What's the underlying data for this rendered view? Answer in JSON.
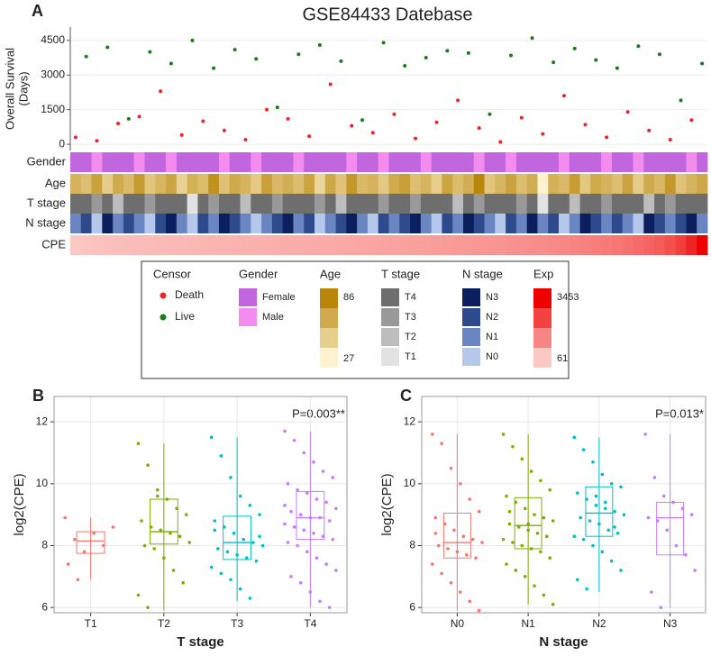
{
  "chart_data": [
    {
      "type": "scatter",
      "panel": "A",
      "title": "GSE84433 Datebase",
      "y_label": [
        "Overall Survival",
        "(Days)"
      ],
      "legend_title": "Censor",
      "xlim": [
        0.5,
        60.5
      ],
      "ylim": [
        -270,
        5080
      ],
      "yticks": [
        0,
        1500,
        3000,
        4500
      ],
      "grid": true,
      "series": [
        {
          "name": "Death",
          "color": "#e8262b",
          "x": [
            1,
            3,
            5,
            7,
            9,
            11,
            13,
            15,
            17,
            19,
            21,
            23,
            25,
            27,
            29,
            31,
            33,
            35,
            37,
            39,
            41,
            43,
            45,
            47,
            49,
            51,
            53,
            55,
            57,
            59
          ],
          "values": [
            300,
            150,
            900,
            1200,
            2300,
            400,
            1000,
            600,
            200,
            1500,
            1100,
            350,
            2600,
            800,
            500,
            1300,
            250,
            950,
            1900,
            700,
            100,
            1150,
            450,
            2100,
            850,
            300,
            1400,
            600,
            200,
            1050
          ]
        },
        {
          "name": "Live",
          "color": "#1e7a1e",
          "x": [
            2,
            4,
            6,
            8,
            10,
            12,
            14,
            16,
            18,
            20,
            22,
            24,
            26,
            28,
            30,
            32,
            34,
            36,
            38,
            40,
            42,
            44,
            46,
            48,
            50,
            52,
            54,
            56,
            58,
            60
          ],
          "values": [
            3800,
            4200,
            1100,
            4000,
            3500,
            4500,
            3300,
            4100,
            3700,
            1600,
            3900,
            4300,
            3600,
            1050,
            4400,
            3400,
            3750,
            4050,
            3950,
            1300,
            3850,
            4600,
            3550,
            4150,
            3650,
            3300,
            4250,
            3900,
            1900,
            3500
          ]
        }
      ]
    },
    {
      "type": "heatmap",
      "rows": [
        {
          "name": "Gender",
          "legend_title": "Gender",
          "levels": [
            "Female",
            "Male"
          ],
          "colors": [
            "#c266e0",
            "#f48cf0"
          ],
          "values": [
            0,
            0,
            1,
            0,
            0,
            0,
            1,
            0,
            0,
            1,
            0,
            0,
            0,
            0,
            1,
            0,
            0,
            1,
            0,
            0,
            0,
            1,
            0,
            0,
            0,
            0,
            1,
            0,
            0,
            1,
            0,
            0,
            0,
            1,
            0,
            0,
            0,
            0,
            1,
            0,
            0,
            1,
            0,
            0,
            0,
            0,
            1,
            0,
            0,
            0,
            1,
            0,
            0,
            1,
            0,
            0,
            0,
            0,
            1,
            0
          ]
        },
        {
          "name": "Age",
          "legend_title": "Age",
          "range": [
            27,
            86
          ],
          "colors": [
            "#fff3cf",
            "#b8860b"
          ],
          "values": [
            62,
            55,
            71,
            48,
            66,
            58,
            75,
            52,
            60,
            69,
            45,
            63,
            57,
            80,
            54,
            67,
            61,
            49,
            72,
            59,
            64,
            56,
            70,
            43,
            68,
            53,
            77,
            58,
            62,
            50,
            66,
            73,
            55,
            61,
            47,
            69,
            57,
            64,
            86,
            52,
            60,
            71,
            56,
            65,
            27,
            63,
            58,
            74,
            51,
            67,
            62,
            55,
            70,
            48,
            66,
            59,
            76,
            53,
            61,
            68
          ]
        },
        {
          "name": "T stage",
          "legend_title": "T stage",
          "levels": [
            "T4",
            "T3",
            "T2",
            "T1"
          ],
          "colors": [
            "#6e6e6e",
            "#999999",
            "#bdbdbd",
            "#e2e2e2"
          ],
          "values": [
            0,
            0,
            1,
            0,
            2,
            0,
            0,
            1,
            0,
            0,
            0,
            3,
            0,
            1,
            0,
            0,
            2,
            0,
            0,
            1,
            0,
            0,
            0,
            1,
            0,
            2,
            0,
            0,
            0,
            1,
            0,
            0,
            1,
            0,
            0,
            0,
            2,
            0,
            1,
            0,
            0,
            0,
            1,
            0,
            3,
            0,
            0,
            2,
            0,
            0,
            1,
            0,
            0,
            0,
            2,
            0,
            1,
            0,
            0,
            0
          ]
        },
        {
          "name": "N stage",
          "legend_title": "N stage",
          "levels": [
            "N3",
            "N2",
            "N1",
            "N0"
          ],
          "colors": [
            "#0b1f5e",
            "#2d4b8c",
            "#6a86c2",
            "#b5c8ec"
          ],
          "values": [
            2,
            1,
            3,
            0,
            2,
            1,
            2,
            3,
            1,
            0,
            2,
            3,
            1,
            2,
            0,
            1,
            2,
            3,
            2,
            1,
            0,
            2,
            1,
            3,
            2,
            1,
            0,
            2,
            3,
            1,
            2,
            1,
            0,
            2,
            3,
            1,
            2,
            0,
            1,
            2,
            3,
            1,
            2,
            0,
            2,
            1,
            3,
            2,
            0,
            1,
            2,
            1,
            2,
            3,
            0,
            1,
            2,
            1,
            0,
            2
          ]
        },
        {
          "name": "CPE",
          "legend_title": "Exp",
          "range": [
            61,
            3453
          ],
          "colors": [
            "#fcc8c4",
            "#ee0000"
          ],
          "values": [
            61,
            120,
            160,
            190,
            215,
            240,
            260,
            280,
            300,
            318,
            336,
            352,
            368,
            384,
            400,
            416,
            432,
            448,
            465,
            482,
            499,
            516,
            534,
            552,
            570,
            589,
            608,
            628,
            648,
            669,
            690,
            712,
            735,
            758,
            782,
            807,
            833,
            860,
            888,
            917,
            947,
            978,
            1010,
            1045,
            1082,
            1122,
            1165,
            1212,
            1263,
            1320,
            1383,
            1455,
            1540,
            1640,
            1760,
            1910,
            2100,
            2400,
            2850,
            3453
          ]
        }
      ]
    },
    {
      "type": "box",
      "panel": "B",
      "annotation": "P=0.003**",
      "x_label": "T stage",
      "y_label": "log2(CPE)",
      "categories": [
        "T1",
        "T2",
        "T3",
        "T4"
      ],
      "colors": [
        "#f8766d",
        "#7cae00",
        "#00bfc4",
        "#c77cff"
      ],
      "ylim": [
        5.83,
        12.82
      ],
      "yticks": [
        6,
        8,
        10,
        12
      ],
      "grid": true,
      "boxes": [
        {
          "q1": 7.75,
          "median": 8.15,
          "q3": 8.45,
          "whisker_low": 6.9,
          "whisker_high": 8.9,
          "points": [
            8.9,
            8.2,
            7.8,
            8.4,
            8.0,
            8.6,
            7.4,
            6.9
          ]
        },
        {
          "q1": 8.05,
          "median": 8.45,
          "q3": 9.5,
          "whisker_low": 5.9,
          "whisker_high": 11.3,
          "points": [
            11.3,
            10.6,
            9.8,
            9.5,
            9.2,
            9.0,
            8.8,
            8.6,
            8.5,
            8.4,
            8.3,
            8.1,
            8.0,
            7.9,
            7.6,
            7.2,
            6.8,
            6.4,
            6.0,
            9.6
          ]
        },
        {
          "q1": 7.55,
          "median": 8.1,
          "q3": 8.95,
          "whisker_low": 6.2,
          "whisker_high": 11.5,
          "points": [
            11.5,
            10.9,
            10.2,
            9.6,
            9.3,
            9.0,
            8.8,
            8.6,
            8.4,
            8.2,
            8.1,
            8.0,
            7.9,
            7.8,
            7.7,
            7.6,
            7.5,
            7.3,
            7.1,
            6.9,
            6.6,
            6.3,
            8.3,
            8.5
          ]
        },
        {
          "q1": 8.2,
          "median": 8.9,
          "q3": 9.75,
          "whisker_low": 6.0,
          "whisker_high": 11.7,
          "points": [
            11.7,
            11.4,
            11.0,
            10.7,
            10.4,
            10.2,
            10.0,
            9.8,
            9.7,
            9.5,
            9.4,
            9.2,
            9.1,
            9.0,
            8.9,
            8.9,
            8.8,
            8.7,
            8.6,
            8.5,
            8.4,
            8.3,
            8.2,
            8.1,
            8.0,
            7.8,
            7.6,
            7.4,
            7.2,
            7.0,
            6.8,
            6.5,
            6.2,
            6.0,
            9.3,
            8.6
          ]
        }
      ]
    },
    {
      "type": "box",
      "panel": "C",
      "annotation": "P=0.013*",
      "x_label": "N stage",
      "y_label": "log2(CPE)",
      "categories": [
        "N0",
        "N1",
        "N2",
        "N3"
      ],
      "colors": [
        "#f8766d",
        "#7cae00",
        "#00bfc4",
        "#c77cff"
      ],
      "ylim": [
        5.83,
        12.82
      ],
      "yticks": [
        6,
        8,
        10,
        12
      ],
      "grid": true,
      "boxes": [
        {
          "q1": 7.6,
          "median": 8.1,
          "q3": 9.05,
          "whisker_low": 5.9,
          "whisker_high": 11.6,
          "points": [
            11.6,
            11.3,
            10.5,
            10.0,
            9.5,
            9.1,
            8.9,
            8.7,
            8.5,
            8.3,
            8.2,
            8.1,
            8.0,
            7.9,
            7.8,
            7.7,
            7.6,
            7.4,
            7.1,
            6.8,
            6.5,
            6.2,
            5.9,
            8.4
          ]
        },
        {
          "q1": 7.9,
          "median": 8.65,
          "q3": 9.55,
          "whisker_low": 6.1,
          "whisker_high": 11.6,
          "points": [
            11.6,
            11.2,
            10.8,
            10.4,
            10.1,
            9.8,
            9.6,
            9.4,
            9.2,
            9.0,
            8.9,
            8.8,
            8.7,
            8.6,
            8.5,
            8.4,
            8.3,
            8.2,
            8.1,
            8.0,
            7.9,
            7.8,
            7.6,
            7.4,
            7.2,
            7.0,
            6.7,
            6.4,
            6.1,
            9.1,
            8.6,
            8.7
          ]
        },
        {
          "q1": 8.3,
          "median": 9.05,
          "q3": 9.9,
          "whisker_low": 6.5,
          "whisker_high": 11.5,
          "points": [
            11.5,
            11.1,
            10.7,
            10.3,
            10.0,
            9.9,
            9.7,
            9.5,
            9.3,
            9.2,
            9.1,
            9.0,
            8.9,
            8.8,
            8.7,
            8.5,
            8.4,
            8.3,
            8.2,
            8.0,
            7.8,
            7.5,
            7.2,
            6.9,
            6.6,
            9.6,
            9.4,
            8.6
          ]
        },
        {
          "q1": 7.7,
          "median": 8.9,
          "q3": 9.4,
          "whisker_low": 6.0,
          "whisker_high": 11.6,
          "points": [
            11.6,
            10.2,
            9.6,
            9.4,
            9.2,
            9.0,
            8.9,
            8.8,
            8.5,
            8.0,
            7.7,
            7.2,
            6.5,
            6.0
          ]
        }
      ]
    }
  ]
}
